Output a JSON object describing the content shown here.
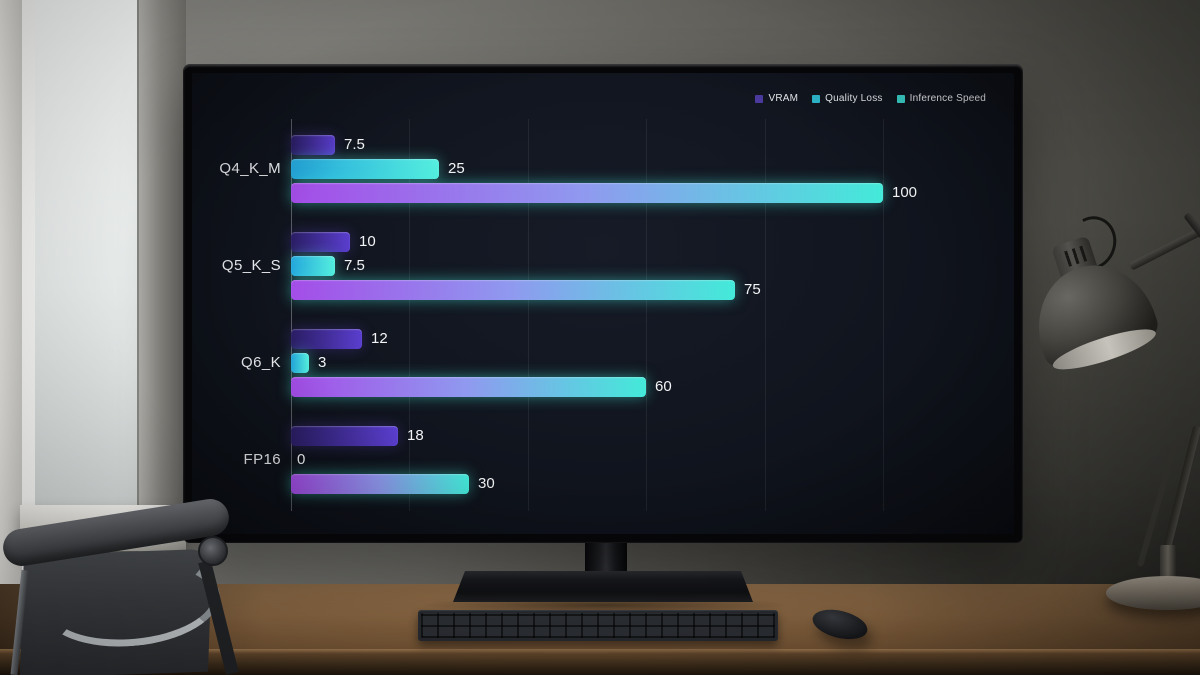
{
  "chart_data": {
    "type": "bar",
    "orientation": "horizontal",
    "title": "",
    "categories": [
      "Q4_K_M",
      "Q5_K_S",
      "Q6_K",
      "FP16"
    ],
    "series": [
      {
        "name": "VRAM",
        "values": [
          7.5,
          10,
          12,
          18
        ],
        "colors": [
          "#2a1d63",
          "#5a3ecf"
        ],
        "legend_swatch": "#4c3aa0",
        "glow": "rgba(106,72,232,0.30)"
      },
      {
        "name": "Quality Loss",
        "values": [
          25,
          7.5,
          3,
          0
        ],
        "colors": [
          "#24a7dc",
          "#55efdf"
        ],
        "legend_swatch": "#2fb9cf",
        "glow": "rgba(84,239,223,0.45)"
      },
      {
        "name": "Inference Speed",
        "values": [
          100,
          75,
          60,
          30
        ],
        "colors": [
          "#a44de8",
          "#8f9aef",
          "#43ead9"
        ],
        "legend_swatch": "#3bd4cc",
        "glow": "rgba(67,234,217,0.50)"
      }
    ],
    "xlim": [
      0,
      100
    ],
    "grid_step": 20,
    "grid": true,
    "legend_position": "top-right",
    "value_labels_shown": true,
    "background_color": "#10141d",
    "text_color": "#f3f4f6"
  }
}
